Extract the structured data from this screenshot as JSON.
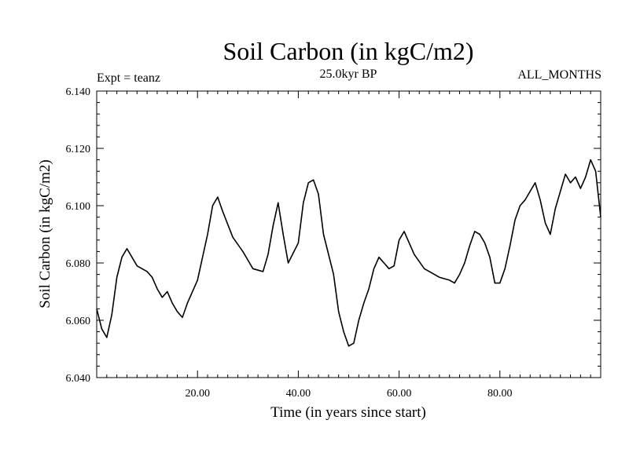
{
  "chart_data": {
    "type": "line",
    "title": "Soil Carbon (in kgC/m2)",
    "subtitle": "25.0kyr BP",
    "left_annotation": "Expt = teanz",
    "right_annotation": "ALL_MONTHS",
    "xlabel": "Time (in years since start)",
    "ylabel": "Soil Carbon (in kgC/m2)",
    "xlim": [
      0,
      100
    ],
    "ylim": [
      6.04,
      6.14
    ],
    "x_ticks": [
      {
        "value": 20,
        "label": "20.00"
      },
      {
        "value": 40,
        "label": "40.00"
      },
      {
        "value": 60,
        "label": "60.00"
      },
      {
        "value": 80,
        "label": "80.00"
      }
    ],
    "y_ticks": [
      {
        "value": 6.04,
        "label": "6.040"
      },
      {
        "value": 6.06,
        "label": "6.060"
      },
      {
        "value": 6.08,
        "label": "6.080"
      },
      {
        "value": 6.1,
        "label": "6.100"
      },
      {
        "value": 6.12,
        "label": "6.120"
      },
      {
        "value": 6.14,
        "label": "6.140"
      }
    ],
    "x_minor_step": 2,
    "y_minor_step": 0.004,
    "grid": false,
    "line_color": "#000000",
    "series": [
      {
        "name": "Soil Carbon",
        "x": [
          0,
          1,
          2,
          3,
          4,
          5,
          6,
          7,
          8,
          10,
          11,
          12,
          13,
          14,
          15,
          16,
          17,
          18,
          20,
          22,
          23,
          24,
          25,
          27,
          29,
          30,
          31,
          33,
          34,
          35,
          36,
          37,
          38,
          40,
          41,
          42,
          43,
          44,
          45,
          47,
          48,
          49,
          50,
          51,
          52,
          53,
          54,
          55,
          56,
          57,
          58,
          59,
          60,
          61,
          63,
          65,
          66,
          67,
          68,
          70,
          71,
          72,
          73,
          74,
          75,
          76,
          77,
          78,
          79,
          80,
          81,
          82,
          83,
          84,
          85,
          86,
          87,
          88,
          89,
          90,
          91,
          92,
          93,
          94,
          95,
          96,
          97,
          98,
          99,
          100
        ],
        "y": [
          6.064,
          6.057,
          6.054,
          6.062,
          6.075,
          6.082,
          6.085,
          6.082,
          6.079,
          6.077,
          6.075,
          6.071,
          6.068,
          6.07,
          6.066,
          6.063,
          6.061,
          6.066,
          6.074,
          6.09,
          6.1,
          6.103,
          6.098,
          6.089,
          6.084,
          6.081,
          6.078,
          6.077,
          6.083,
          6.093,
          6.101,
          6.09,
          6.08,
          6.087,
          6.101,
          6.108,
          6.109,
          6.104,
          6.09,
          6.076,
          6.063,
          6.056,
          6.051,
          6.052,
          6.06,
          6.066,
          6.071,
          6.078,
          6.082,
          6.08,
          6.078,
          6.079,
          6.088,
          6.091,
          6.083,
          6.078,
          6.077,
          6.076,
          6.075,
          6.074,
          6.073,
          6.076,
          6.08,
          6.086,
          6.091,
          6.09,
          6.087,
          6.082,
          6.073,
          6.073,
          6.078,
          6.086,
          6.095,
          6.1,
          6.102,
          6.105,
          6.108,
          6.102,
          6.094,
          6.09,
          6.099,
          6.105,
          6.111,
          6.108,
          6.11,
          6.106,
          6.11,
          6.116,
          6.112,
          6.096
        ]
      }
    ]
  }
}
